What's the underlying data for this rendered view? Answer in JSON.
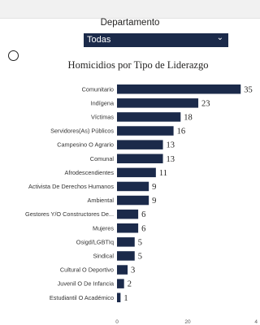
{
  "filter": {
    "label": "Departamento",
    "selected": "Todas",
    "chevron_icon": "chevron-down-icon"
  },
  "colors": {
    "bar": "#1b2a4a",
    "dropdown_bg": "#1b2a4a"
  },
  "chart_data": {
    "type": "bar",
    "orientation": "horizontal",
    "title": "Homicidios por Tipo de Liderazgo",
    "categories": [
      "Comunitario",
      "Indígena",
      "Víctimas",
      "Servidores(As) Públicos",
      "Campesino O Agrario",
      "Comunal",
      "Afrodescendientes",
      "Activista De Derechos Humanos",
      "Ambiental",
      "Gestores Y/O Constructores De...",
      "Mujeres",
      "Osigd/LGBTIq",
      "Sindical",
      "Cultural O Deportivo",
      "Juvenil O De Infancia",
      "Estudiantil O Académico"
    ],
    "values": [
      35,
      23,
      18,
      16,
      13,
      13,
      11,
      9,
      9,
      6,
      6,
      5,
      5,
      3,
      2,
      1
    ],
    "x_ticks": [
      "0",
      "20",
      "4"
    ],
    "xlim": [
      0,
      40
    ],
    "data_labels": true,
    "grid": false
  }
}
